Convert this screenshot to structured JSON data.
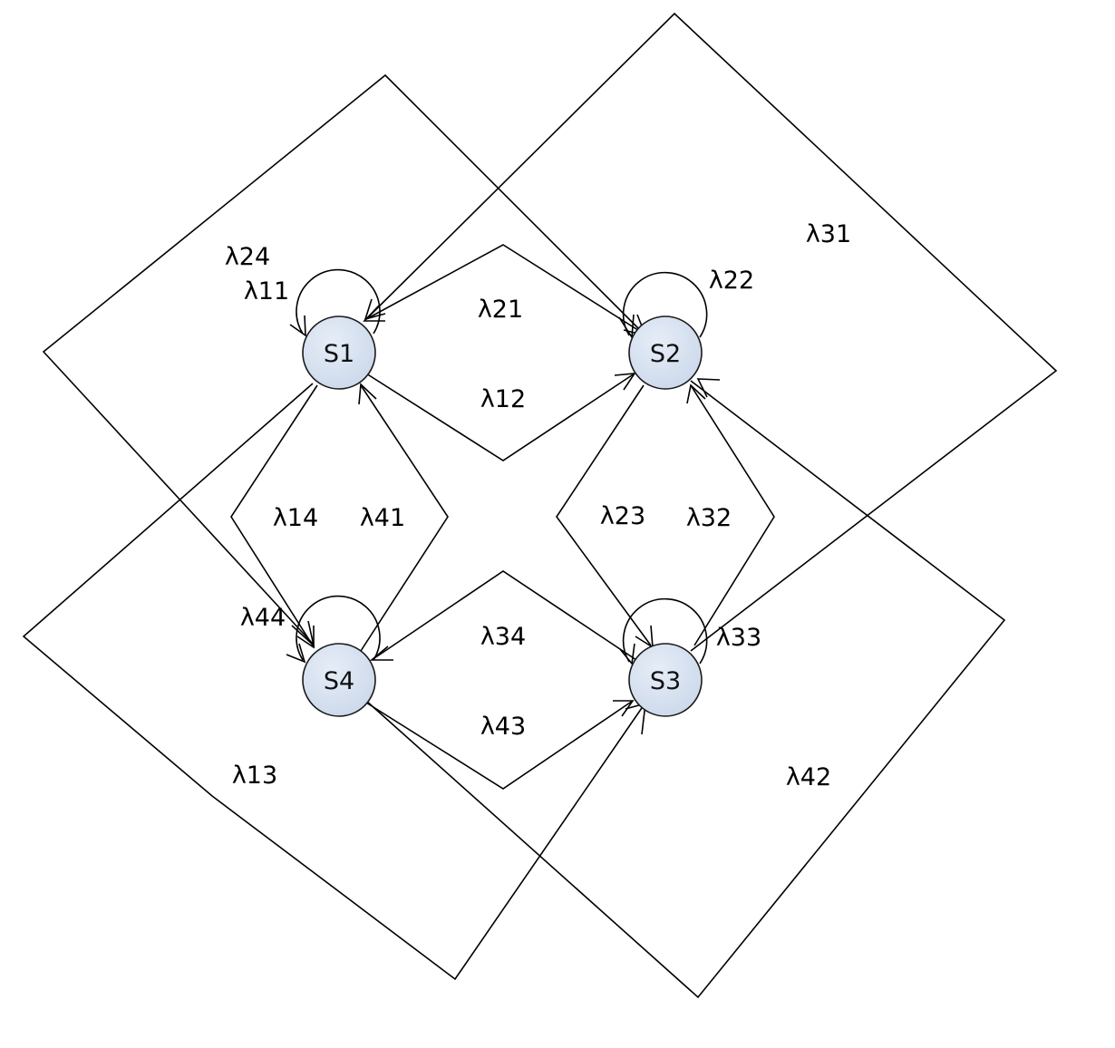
{
  "diagram": {
    "node_fill": "#ccd9eb",
    "node_fill_highlight": "#e6edf7",
    "line_color": "#000000",
    "nodes": [
      {
        "id": "S1",
        "label": "S1"
      },
      {
        "id": "S2",
        "label": "S2"
      },
      {
        "id": "S3",
        "label": "S3"
      },
      {
        "id": "S4",
        "label": "S4"
      }
    ],
    "edges": [
      {
        "id": "l11",
        "from": "S1",
        "to": "S1",
        "label": "λ11"
      },
      {
        "id": "l12",
        "from": "S1",
        "to": "S2",
        "label": "λ12"
      },
      {
        "id": "l13",
        "from": "S1",
        "to": "S3",
        "label": "λ13"
      },
      {
        "id": "l14",
        "from": "S1",
        "to": "S4",
        "label": "λ14"
      },
      {
        "id": "l21",
        "from": "S2",
        "to": "S1",
        "label": "λ21"
      },
      {
        "id": "l22",
        "from": "S2",
        "to": "S2",
        "label": "λ22"
      },
      {
        "id": "l23",
        "from": "S2",
        "to": "S3",
        "label": "λ23"
      },
      {
        "id": "l24",
        "from": "S2",
        "to": "S4",
        "label": "λ24"
      },
      {
        "id": "l31",
        "from": "S3",
        "to": "S1",
        "label": "λ31"
      },
      {
        "id": "l32",
        "from": "S3",
        "to": "S2",
        "label": "λ32"
      },
      {
        "id": "l33",
        "from": "S3",
        "to": "S3",
        "label": "λ33"
      },
      {
        "id": "l34",
        "from": "S3",
        "to": "S4",
        "label": "λ34"
      },
      {
        "id": "l41",
        "from": "S4",
        "to": "S1",
        "label": "λ41"
      },
      {
        "id": "l42",
        "from": "S4",
        "to": "S2",
        "label": "λ42"
      },
      {
        "id": "l43",
        "from": "S4",
        "to": "S3",
        "label": "λ43"
      },
      {
        "id": "l44",
        "from": "S4",
        "to": "S4",
        "label": "λ44"
      }
    ]
  }
}
